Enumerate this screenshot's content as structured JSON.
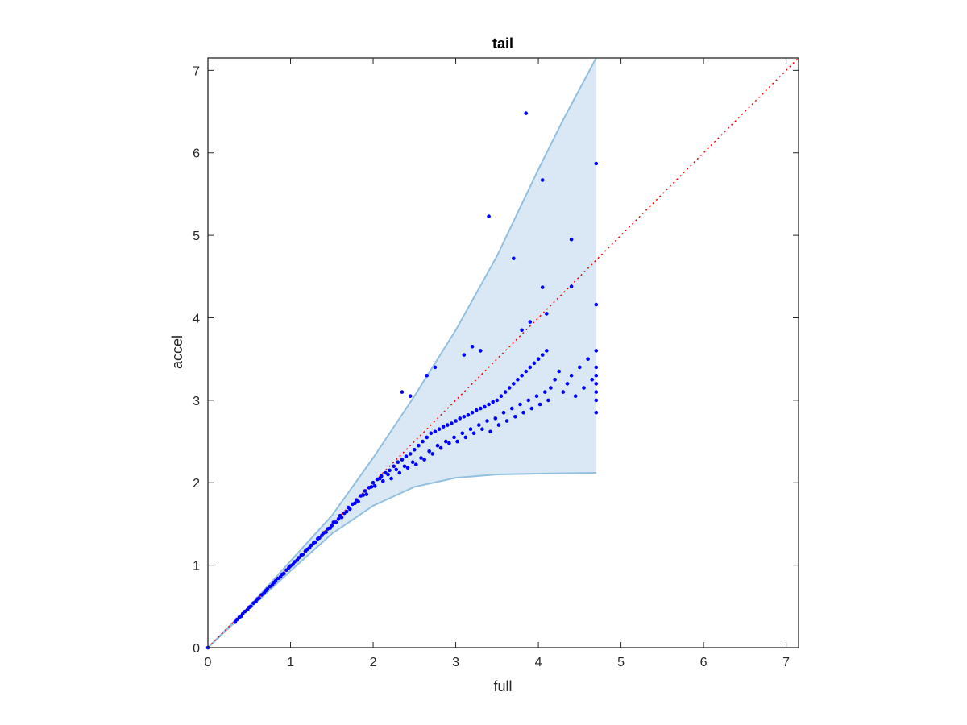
{
  "colors": {
    "band_fill": "#d9e8f4",
    "band_edge": "#93c0df",
    "points": "#0000ff",
    "reference_line": "#ff0000",
    "axes": "#262626"
  },
  "chart_data": {
    "type": "scatter",
    "title": "tail",
    "xlabel": "full",
    "ylabel": "accel",
    "xlim": [
      0,
      7.15
    ],
    "ylim": [
      0,
      7.15
    ],
    "x_ticks": [
      0,
      1,
      2,
      3,
      4,
      5,
      6,
      7
    ],
    "y_ticks": [
      0,
      1,
      2,
      3,
      4,
      5,
      6,
      7
    ],
    "x_tick_labels": [
      "0",
      "1",
      "2",
      "3",
      "4",
      "5",
      "6",
      "7"
    ],
    "y_tick_labels": [
      "0",
      "1",
      "2",
      "3",
      "4",
      "5",
      "6",
      "7"
    ],
    "grid": false,
    "box": true,
    "reference_line": {
      "style": "dotted",
      "slope": 1,
      "intercept": 0
    },
    "band": {
      "upper": [
        [
          0,
          0
        ],
        [
          0.5,
          0.5
        ],
        [
          1.0,
          1.05
        ],
        [
          1.5,
          1.6
        ],
        [
          2.0,
          2.3
        ],
        [
          2.5,
          3.05
        ],
        [
          3.0,
          3.85
        ],
        [
          3.5,
          4.75
        ],
        [
          4.0,
          5.8
        ],
        [
          4.3,
          6.4
        ],
        [
          4.7,
          7.15
        ]
      ],
      "lower": [
        [
          0,
          0
        ],
        [
          0.5,
          0.47
        ],
        [
          1.0,
          0.93
        ],
        [
          1.5,
          1.38
        ],
        [
          2.0,
          1.72
        ],
        [
          2.5,
          1.95
        ],
        [
          3.0,
          2.06
        ],
        [
          3.5,
          2.1
        ],
        [
          4.0,
          2.11
        ],
        [
          4.7,
          2.12
        ]
      ]
    },
    "series": [
      {
        "points": [
          [
            0.0,
            0.0
          ],
          [
            0.33,
            0.31
          ],
          [
            0.35,
            0.34
          ],
          [
            0.38,
            0.37
          ],
          [
            0.4,
            0.38
          ],
          [
            0.42,
            0.41
          ],
          [
            0.45,
            0.44
          ],
          [
            0.48,
            0.46
          ],
          [
            0.5,
            0.49
          ],
          [
            0.52,
            0.5
          ],
          [
            0.55,
            0.54
          ],
          [
            0.58,
            0.56
          ],
          [
            0.6,
            0.59
          ],
          [
            0.62,
            0.6
          ],
          [
            0.65,
            0.64
          ],
          [
            0.68,
            0.66
          ],
          [
            0.7,
            0.69
          ],
          [
            0.72,
            0.71
          ],
          [
            0.75,
            0.74
          ],
          [
            0.78,
            0.76
          ],
          [
            0.8,
            0.79
          ],
          [
            0.82,
            0.81
          ],
          [
            0.85,
            0.84
          ],
          [
            0.88,
            0.86
          ],
          [
            0.9,
            0.89
          ],
          [
            0.92,
            0.9
          ],
          [
            0.95,
            0.94
          ],
          [
            0.98,
            0.97
          ],
          [
            1.0,
            0.99
          ],
          [
            1.03,
            1.01
          ],
          [
            1.05,
            1.04
          ],
          [
            1.08,
            1.06
          ],
          [
            1.1,
            1.09
          ],
          [
            1.13,
            1.12
          ],
          [
            1.15,
            1.13
          ],
          [
            1.18,
            1.17
          ],
          [
            1.2,
            1.19
          ],
          [
            1.23,
            1.21
          ],
          [
            1.25,
            1.24
          ],
          [
            1.28,
            1.27
          ],
          [
            1.3,
            1.28
          ],
          [
            1.33,
            1.32
          ],
          [
            1.35,
            1.33
          ],
          [
            1.38,
            1.36
          ],
          [
            1.4,
            1.39
          ],
          [
            1.43,
            1.4
          ],
          [
            1.45,
            1.44
          ],
          [
            1.48,
            1.45
          ],
          [
            1.5,
            1.48
          ],
          [
            1.52,
            1.52
          ],
          [
            1.55,
            1.52
          ],
          [
            1.58,
            1.56
          ],
          [
            1.6,
            1.6
          ],
          [
            1.62,
            1.58
          ],
          [
            1.65,
            1.63
          ],
          [
            1.68,
            1.65
          ],
          [
            1.7,
            1.7
          ],
          [
            1.72,
            1.68
          ],
          [
            1.75,
            1.74
          ],
          [
            1.78,
            1.75
          ],
          [
            1.8,
            1.79
          ],
          [
            1.82,
            1.77
          ],
          [
            1.85,
            1.84
          ],
          [
            1.88,
            1.85
          ],
          [
            1.9,
            1.9
          ],
          [
            1.92,
            1.86
          ],
          [
            1.95,
            1.94
          ],
          [
            1.98,
            1.95
          ],
          [
            2.0,
            2.0
          ],
          [
            2.02,
            1.96
          ],
          [
            2.05,
            2.04
          ],
          [
            2.08,
            2.05
          ],
          [
            2.1,
            2.08
          ],
          [
            2.12,
            2.02
          ],
          [
            2.15,
            2.12
          ],
          [
            2.18,
            2.1
          ],
          [
            2.2,
            2.15
          ],
          [
            2.22,
            2.05
          ],
          [
            2.25,
            2.2
          ],
          [
            2.28,
            2.16
          ],
          [
            2.3,
            2.25
          ],
          [
            2.32,
            2.12
          ],
          [
            2.35,
            2.28
          ],
          [
            2.38,
            2.2
          ],
          [
            2.4,
            2.32
          ],
          [
            2.42,
            2.18
          ],
          [
            2.45,
            2.35
          ],
          [
            2.48,
            2.25
          ],
          [
            2.5,
            2.4
          ],
          [
            2.52,
            2.22
          ],
          [
            2.55,
            2.45
          ],
          [
            2.58,
            2.3
          ],
          [
            2.6,
            2.5
          ],
          [
            2.62,
            2.28
          ],
          [
            2.65,
            2.55
          ],
          [
            2.68,
            2.38
          ],
          [
            2.7,
            2.6
          ],
          [
            2.72,
            2.35
          ],
          [
            2.75,
            2.62
          ],
          [
            2.78,
            2.45
          ],
          [
            2.8,
            2.65
          ],
          [
            2.82,
            2.42
          ],
          [
            2.85,
            2.68
          ],
          [
            2.88,
            2.5
          ],
          [
            2.9,
            2.7
          ],
          [
            2.92,
            2.48
          ],
          [
            2.95,
            2.72
          ],
          [
            2.98,
            2.55
          ],
          [
            3.0,
            2.75
          ],
          [
            3.02,
            2.5
          ],
          [
            3.05,
            2.78
          ],
          [
            3.08,
            2.6
          ],
          [
            3.1,
            2.8
          ],
          [
            3.12,
            2.55
          ],
          [
            3.15,
            2.82
          ],
          [
            3.18,
            2.65
          ],
          [
            3.2,
            2.85
          ],
          [
            3.22,
            2.6
          ],
          [
            3.25,
            2.88
          ],
          [
            3.28,
            2.7
          ],
          [
            3.3,
            2.9
          ],
          [
            3.32,
            2.65
          ],
          [
            3.35,
            2.92
          ],
          [
            3.38,
            2.75
          ],
          [
            3.4,
            2.95
          ],
          [
            3.42,
            2.62
          ],
          [
            3.45,
            2.98
          ],
          [
            3.48,
            2.78
          ],
          [
            3.5,
            3.0
          ],
          [
            3.52,
            2.7
          ],
          [
            3.55,
            3.05
          ],
          [
            3.58,
            2.85
          ],
          [
            3.6,
            3.1
          ],
          [
            3.62,
            2.75
          ],
          [
            3.65,
            3.15
          ],
          [
            3.68,
            2.9
          ],
          [
            3.7,
            3.2
          ],
          [
            3.72,
            2.8
          ],
          [
            3.75,
            3.25
          ],
          [
            3.78,
            2.95
          ],
          [
            3.8,
            3.3
          ],
          [
            3.82,
            2.85
          ],
          [
            3.85,
            3.35
          ],
          [
            3.88,
            3.0
          ],
          [
            3.9,
            3.4
          ],
          [
            3.92,
            2.9
          ],
          [
            3.95,
            3.45
          ],
          [
            3.98,
            3.05
          ],
          [
            4.0,
            3.5
          ],
          [
            4.02,
            2.95
          ],
          [
            4.05,
            3.55
          ],
          [
            4.08,
            3.1
          ],
          [
            4.1,
            3.6
          ],
          [
            4.12,
            3.0
          ],
          [
            4.15,
            3.15
          ],
          [
            4.2,
            3.25
          ],
          [
            4.25,
            3.35
          ],
          [
            4.3,
            3.1
          ],
          [
            4.35,
            3.2
          ],
          [
            4.4,
            3.3
          ],
          [
            4.45,
            3.05
          ],
          [
            4.5,
            3.4
          ],
          [
            4.55,
            3.15
          ],
          [
            4.6,
            3.5
          ],
          [
            4.65,
            3.25
          ],
          [
            4.7,
            3.6
          ],
          [
            4.7,
            3.4
          ],
          [
            4.7,
            3.2
          ],
          [
            4.7,
            3.0
          ],
          [
            4.7,
            2.85
          ],
          [
            4.7,
            3.1
          ],
          [
            4.7,
            3.3
          ],
          [
            2.35,
            3.1
          ],
          [
            2.45,
            3.05
          ],
          [
            2.65,
            3.3
          ],
          [
            2.75,
            3.4
          ],
          [
            3.1,
            3.55
          ],
          [
            3.2,
            3.65
          ],
          [
            3.3,
            3.6
          ],
          [
            3.4,
            5.23
          ],
          [
            3.7,
            4.72
          ],
          [
            3.85,
            6.48
          ],
          [
            4.05,
            5.67
          ],
          [
            4.05,
            4.37
          ],
          [
            4.4,
            4.95
          ],
          [
            4.4,
            4.38
          ],
          [
            4.7,
            5.87
          ],
          [
            4.7,
            4.16
          ],
          [
            4.1,
            4.05
          ],
          [
            3.9,
            3.95
          ],
          [
            3.8,
            3.85
          ]
        ]
      }
    ]
  }
}
